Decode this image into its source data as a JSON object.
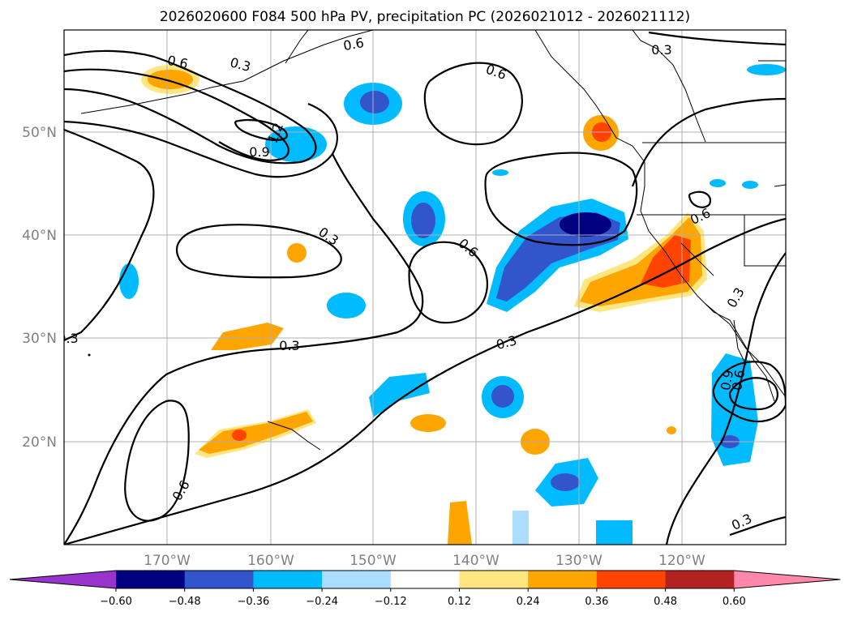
{
  "chart_data": {
    "type": "contour-map",
    "title": "2026020600 F084 500 hPa PV, precipitation PC (2026021012 - 2026021112)",
    "x_ticks": [
      "170°W",
      "160°W",
      "150°W",
      "140°W",
      "130°W",
      "120°W"
    ],
    "y_ticks": [
      "50°N",
      "40°N",
      "30°N",
      "20°N"
    ],
    "lon_range": [
      -180,
      -110
    ],
    "lat_range": [
      10,
      60
    ],
    "contour_levels": [
      0.3,
      0.6,
      0.9,
      1.2
    ],
    "contour_labels": [
      "0.6",
      "0.3",
      "0.6",
      "0.3",
      "0.6",
      "1.2",
      "0.9",
      "0.3",
      "0.6",
      "0.6",
      "0.3",
      "0.3",
      "0.3",
      "0.6",
      "0.3",
      "0.3",
      "0.9",
      "0.6"
    ],
    "colorbar": {
      "ticks": [
        "−0.60",
        "−0.48",
        "−0.36",
        "−0.24",
        "−0.12",
        "0.12",
        "0.24",
        "0.36",
        "0.48",
        "0.60"
      ],
      "colors": [
        "#9933cc",
        "#000080",
        "#3355cc",
        "#00bbff",
        "#aaddff",
        "#ffffff",
        "#ffe680",
        "#ffa500",
        "#ff4400",
        "#b22222",
        "#ff88aa"
      ]
    }
  }
}
